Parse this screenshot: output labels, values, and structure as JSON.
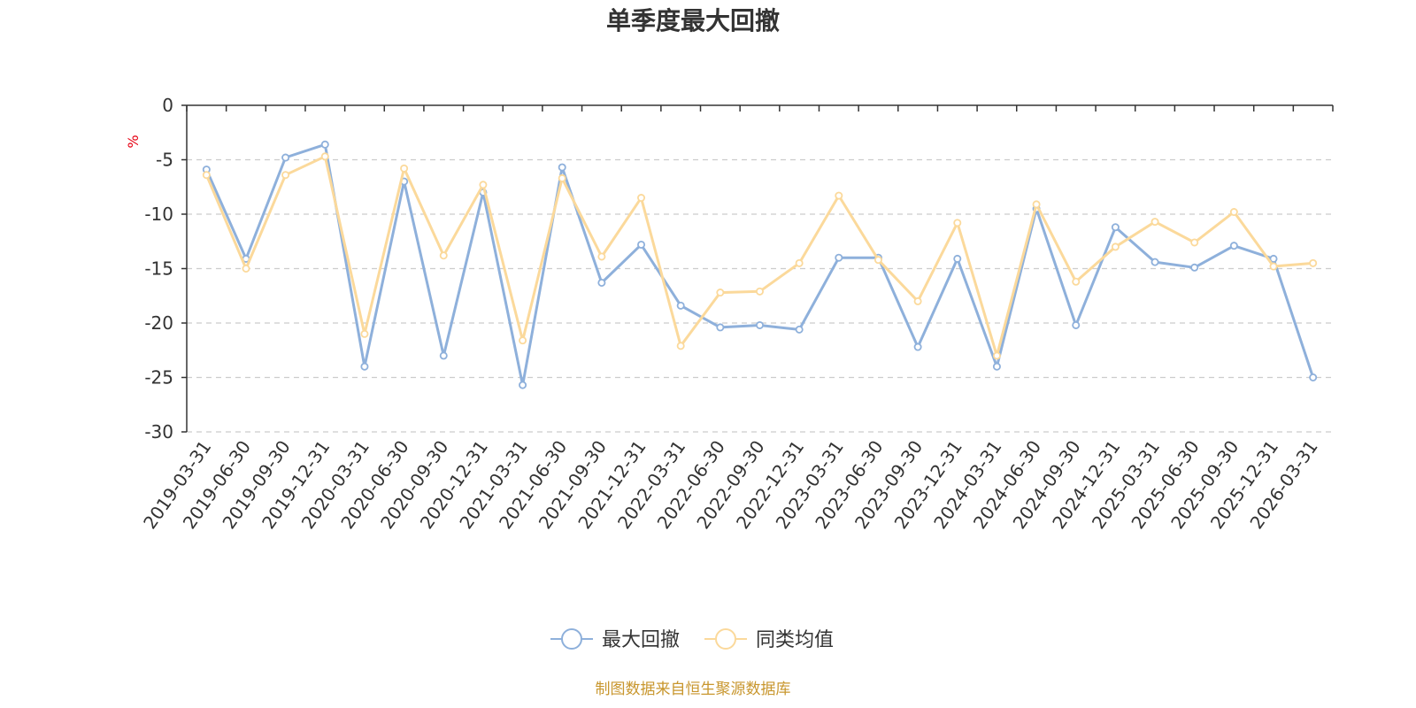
{
  "chart_data": {
    "type": "line",
    "title": "单季度最大回撤",
    "ylabel": "%",
    "ylim": [
      -30,
      0
    ],
    "yticks": [
      0,
      -5,
      -10,
      -15,
      -20,
      -25,
      -30
    ],
    "grid": true,
    "legend_position": "bottom",
    "categories": [
      "2019-03-31",
      "2019-06-30",
      "2019-09-30",
      "2019-12-31",
      "2020-03-31",
      "2020-06-30",
      "2020-09-30",
      "2020-12-31",
      "2021-03-31",
      "2021-06-30",
      "2021-09-30",
      "2021-12-31",
      "2022-03-31",
      "2022-06-30",
      "2022-09-30",
      "2022-12-31",
      "2023-03-31",
      "2023-06-30",
      "2023-09-30",
      "2023-12-31",
      "2024-03-31",
      "2024-06-30",
      "2024-09-30",
      "2024-12-31",
      "2025-03-31",
      "2025-06-30",
      "2025-09-30",
      "2025-12-31",
      "2026-03-31"
    ],
    "series": [
      {
        "name": "最大回撤",
        "color": "#8eb0db",
        "values": [
          -5.9,
          -14.1,
          -4.8,
          -3.6,
          -24.0,
          -7.0,
          -23.0,
          -8.0,
          -25.7,
          -5.7,
          -16.3,
          -12.8,
          -18.4,
          -20.4,
          -20.2,
          -20.6,
          -14.0,
          -14.0,
          -22.2,
          -14.1,
          -24.0,
          -9.5,
          -20.2,
          -11.2,
          -14.4,
          -14.9,
          -12.9,
          -14.1,
          -25.0
        ]
      },
      {
        "name": "同类均值",
        "color": "#fbd99b",
        "values": [
          -6.4,
          -15.0,
          -6.4,
          -4.7,
          -21.0,
          -5.8,
          -13.8,
          -7.3,
          -21.6,
          -6.7,
          -13.9,
          -8.5,
          -22.1,
          -17.2,
          -17.1,
          -14.5,
          -8.3,
          -14.2,
          -18.0,
          -10.8,
          -23.0,
          -9.1,
          -16.2,
          -13.0,
          -10.7,
          -12.6,
          -9.8,
          -14.8,
          -14.5
        ]
      }
    ],
    "source_text": "制图数据来自恒生聚源数据库",
    "colors": {
      "axis": "#333333",
      "grid": "#cccccc",
      "unit": "#e60012",
      "source": "#c8962d",
      "title": "#333333"
    }
  }
}
